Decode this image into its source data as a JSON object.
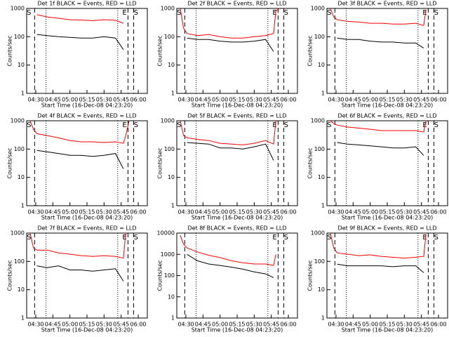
{
  "chart_data": [
    {
      "type": "line",
      "title": "Det 1f BLACK = Events, RED = LLD",
      "xlabel": "Start Time (16-Dec-08 04:23:20)",
      "ylabel": "Counts/sec",
      "log_y": true,
      "x": [
        "04:25",
        "04:28",
        "04:31",
        "04:40",
        "04:50",
        "05:00",
        "05:10",
        "05:20",
        "05:30",
        "05:40",
        "05:47",
        "05:49",
        "05:52",
        "05:55"
      ],
      "series": [
        {
          "color": "#ff0000",
          "values": [
            null,
            null,
            600,
            500,
            450,
            400,
            390,
            370,
            400,
            380,
            300,
            null,
            null,
            null
          ]
        },
        {
          "color": "#000000",
          "values": [
            null,
            null,
            120,
            110,
            100,
            95,
            90,
            90,
            100,
            90,
            35,
            null,
            null,
            null
          ]
        }
      ],
      "xlim": [
        "04:22",
        "06:08"
      ],
      "xticks": [
        "04:30",
        "04:45",
        "05:00",
        "05:15",
        "05:30",
        "05:45",
        "06:00"
      ],
      "ylim": [
        1,
        1000
      ],
      "yticks": [
        1,
        10,
        100,
        1000
      ],
      "vlines": [
        {
          "x": "04:29",
          "style": "dashed"
        },
        {
          "x": "04:39",
          "style": "dotted"
        },
        {
          "x": "05:42",
          "style": "dotted"
        },
        {
          "x": "05:51",
          "style": "dashed"
        },
        {
          "x": "05:56",
          "style": "dashed"
        }
      ],
      "labels": [
        {
          "x": "04:24",
          "text": "S"
        },
        {
          "x": "05:48",
          "text": "E"
        },
        {
          "x": "05:58",
          "text": "S"
        }
      ]
    },
    {
      "type": "line",
      "title": "Det 2f BLACK = Events, RED = LLD",
      "xlabel": "Start Time (16-Dec-08 04:23:20)",
      "ylabel": "Counts/sec",
      "log_y": true,
      "x": [
        "04:25",
        "04:28",
        "04:31",
        "04:40",
        "04:50",
        "05:00",
        "05:10",
        "05:20",
        "05:30",
        "05:40",
        "05:47",
        "05:49",
        "05:52",
        "05:55"
      ],
      "series": [
        {
          "color": "#ff0000",
          "values": [
            1000,
            200,
            130,
            110,
            120,
            100,
            90,
            90,
            100,
            110,
            130,
            800,
            1000,
            null
          ]
        },
        {
          "color": "#000000",
          "values": [
            null,
            null,
            90,
            80,
            80,
            70,
            65,
            65,
            70,
            80,
            30,
            null,
            null,
            null
          ]
        }
      ],
      "xlim": [
        "04:22",
        "06:08"
      ],
      "xticks": [
        "04:30",
        "04:45",
        "05:00",
        "05:15",
        "05:30",
        "05:45",
        "06:00"
      ],
      "ylim": [
        1,
        1000
      ],
      "yticks": [
        1,
        10,
        100,
        1000
      ],
      "vlines": [
        {
          "x": "04:29",
          "style": "dashed"
        },
        {
          "x": "04:39",
          "style": "dotted"
        },
        {
          "x": "05:42",
          "style": "dotted"
        },
        {
          "x": "05:51",
          "style": "dashed"
        },
        {
          "x": "05:56",
          "style": "dashed"
        }
      ],
      "labels": [
        {
          "x": "04:24",
          "text": "S"
        },
        {
          "x": "05:48",
          "text": "E"
        },
        {
          "x": "05:58",
          "text": "S"
        }
      ]
    },
    {
      "type": "line",
      "title": "Det 3f BLACK = Events, RED = LLD",
      "xlabel": "Start Time (16-Dec-08 04:23:20)",
      "ylabel": "Counts/sec",
      "log_y": true,
      "x": [
        "04:25",
        "04:28",
        "04:31",
        "04:40",
        "04:50",
        "05:00",
        "05:10",
        "05:20",
        "05:30",
        "05:40",
        "05:47",
        "05:49",
        "05:52",
        "05:55"
      ],
      "series": [
        {
          "color": "#ff0000",
          "values": [
            1000,
            500,
            400,
            350,
            330,
            300,
            300,
            280,
            280,
            300,
            250,
            900,
            null,
            null
          ]
        },
        {
          "color": "#000000",
          "values": [
            null,
            null,
            90,
            80,
            80,
            70,
            65,
            65,
            60,
            60,
            40,
            null,
            null,
            null
          ]
        }
      ],
      "xlim": [
        "04:22",
        "06:08"
      ],
      "xticks": [
        "04:30",
        "04:45",
        "05:00",
        "05:15",
        "05:30",
        "05:45",
        "06:00"
      ],
      "ylim": [
        1,
        1000
      ],
      "yticks": [
        1,
        10,
        100,
        1000
      ],
      "vlines": [
        {
          "x": "04:29",
          "style": "dashed"
        },
        {
          "x": "04:39",
          "style": "dotted"
        },
        {
          "x": "05:42",
          "style": "dotted"
        },
        {
          "x": "05:51",
          "style": "dashed"
        },
        {
          "x": "05:56",
          "style": "dashed"
        }
      ],
      "labels": [
        {
          "x": "04:24",
          "text": "S"
        },
        {
          "x": "05:48",
          "text": "E"
        },
        {
          "x": "05:58",
          "text": "S"
        }
      ]
    },
    {
      "type": "line",
      "title": "Det 4f BLACK = Events, RED = LLD",
      "xlabel": "Start Time (16-Dec-08 04:23:20)",
      "ylabel": "Counts/sec",
      "log_y": true,
      "x": [
        "04:25",
        "04:28",
        "04:31",
        "04:40",
        "04:50",
        "05:00",
        "05:10",
        "05:20",
        "05:30",
        "05:40",
        "05:47",
        "05:49",
        "05:52",
        "05:55"
      ],
      "series": [
        {
          "color": "#ff0000",
          "values": [
            1000,
            500,
            350,
            300,
            250,
            200,
            180,
            180,
            170,
            180,
            160,
            300,
            1000,
            null
          ]
        },
        {
          "color": "#000000",
          "values": [
            null,
            null,
            90,
            80,
            70,
            60,
            60,
            55,
            60,
            70,
            20,
            null,
            null,
            null
          ]
        }
      ],
      "xlim": [
        "04:22",
        "06:08"
      ],
      "xticks": [
        "04:30",
        "04:45",
        "05:00",
        "05:15",
        "05:30",
        "05:45",
        "06:00"
      ],
      "ylim": [
        1,
        1000
      ],
      "yticks": [
        1,
        10,
        100,
        1000
      ],
      "vlines": [
        {
          "x": "04:29",
          "style": "dashed"
        },
        {
          "x": "04:39",
          "style": "dotted"
        },
        {
          "x": "05:42",
          "style": "dotted"
        },
        {
          "x": "05:51",
          "style": "dashed"
        },
        {
          "x": "05:56",
          "style": "dashed"
        }
      ],
      "labels": [
        {
          "x": "04:24",
          "text": "S"
        },
        {
          "x": "05:48",
          "text": "E"
        },
        {
          "x": "05:58",
          "text": "S"
        }
      ]
    },
    {
      "type": "line",
      "title": "Det 5f BLACK = Events, RED = LLD",
      "xlabel": "Start Time (16-Dec-08 04:23:20)",
      "ylabel": "Counts/sec",
      "log_y": true,
      "x": [
        "04:25",
        "04:28",
        "04:31",
        "04:40",
        "04:50",
        "05:00",
        "05:10",
        "05:20",
        "05:30",
        "05:40",
        "05:47",
        "05:49",
        "05:52",
        "05:55"
      ],
      "series": [
        {
          "color": "#ff0000",
          "values": [
            1000,
            300,
            250,
            220,
            200,
            160,
            150,
            140,
            160,
            200,
            150,
            1000,
            null,
            null
          ]
        },
        {
          "color": "#000000",
          "values": [
            null,
            null,
            170,
            160,
            150,
            110,
            110,
            100,
            120,
            150,
            40,
            null,
            null,
            null
          ]
        }
      ],
      "xlim": [
        "04:22",
        "06:08"
      ],
      "xticks": [
        "04:30",
        "04:45",
        "05:00",
        "05:15",
        "05:30",
        "05:45",
        "06:00"
      ],
      "ylim": [
        1,
        1000
      ],
      "yticks": [
        1,
        10,
        100,
        1000
      ],
      "vlines": [
        {
          "x": "04:29",
          "style": "dashed"
        },
        {
          "x": "04:39",
          "style": "dotted"
        },
        {
          "x": "05:42",
          "style": "dotted"
        },
        {
          "x": "05:51",
          "style": "dashed"
        },
        {
          "x": "05:56",
          "style": "dashed"
        }
      ],
      "labels": [
        {
          "x": "04:24",
          "text": "S"
        },
        {
          "x": "05:48",
          "text": "E"
        },
        {
          "x": "05:58",
          "text": "S"
        }
      ]
    },
    {
      "type": "line",
      "title": "Det 6f BLACK = Events, RED = LLD",
      "xlabel": "Start Time (16-Dec-08 04:23:20)",
      "ylabel": "Counts/sec",
      "log_y": true,
      "x": [
        "04:25",
        "04:28",
        "04:31",
        "04:40",
        "04:50",
        "05:00",
        "05:10",
        "05:20",
        "05:30",
        "05:40",
        "05:47",
        "05:49",
        "05:52",
        "05:55"
      ],
      "series": [
        {
          "color": "#ff0000",
          "values": [
            1000,
            800,
            700,
            600,
            550,
            500,
            450,
            450,
            450,
            450,
            400,
            1000,
            null,
            null
          ]
        },
        {
          "color": "#000000",
          "values": [
            null,
            null,
            170,
            150,
            140,
            130,
            120,
            110,
            110,
            120,
            60,
            null,
            null,
            null
          ]
        }
      ],
      "xlim": [
        "04:22",
        "06:08"
      ],
      "xticks": [
        "04:30",
        "04:45",
        "05:00",
        "05:15",
        "05:30",
        "05:45",
        "06:00"
      ],
      "ylim": [
        1,
        1000
      ],
      "yticks": [
        1,
        10,
        100,
        1000
      ],
      "vlines": [
        {
          "x": "04:29",
          "style": "dashed"
        },
        {
          "x": "04:39",
          "style": "dotted"
        },
        {
          "x": "05:42",
          "style": "dotted"
        },
        {
          "x": "05:51",
          "style": "dashed"
        },
        {
          "x": "05:56",
          "style": "dashed"
        }
      ],
      "labels": [
        {
          "x": "04:24",
          "text": "S"
        },
        {
          "x": "05:48",
          "text": "E"
        },
        {
          "x": "05:58",
          "text": "S"
        }
      ]
    },
    {
      "type": "line",
      "title": "Det 7f BLACK = Events, RED = LLD",
      "xlabel": "Start Time (16-Dec-08 04:23:20)",
      "ylabel": "Counts/sec",
      "log_y": true,
      "x": [
        "04:25",
        "04:28",
        "04:31",
        "04:40",
        "04:50",
        "05:00",
        "05:10",
        "05:20",
        "05:30",
        "05:40",
        "05:47",
        "05:49",
        "05:52",
        "05:55"
      ],
      "series": [
        {
          "color": "#ff0000",
          "values": [
            1000,
            300,
            250,
            250,
            200,
            180,
            160,
            150,
            160,
            150,
            130,
            1000,
            null,
            null
          ]
        },
        {
          "color": "#000000",
          "values": [
            null,
            null,
            70,
            60,
            70,
            50,
            50,
            45,
            50,
            55,
            20,
            null,
            null,
            null
          ]
        }
      ],
      "xlim": [
        "04:22",
        "06:08"
      ],
      "xticks": [
        "04:30",
        "04:45",
        "05:00",
        "05:15",
        "05:30",
        "05:45",
        "06:00"
      ],
      "ylim": [
        1,
        1000
      ],
      "yticks": [
        1,
        10,
        100,
        1000
      ],
      "vlines": [
        {
          "x": "04:29",
          "style": "dashed"
        },
        {
          "x": "04:39",
          "style": "dotted"
        },
        {
          "x": "05:42",
          "style": "dotted"
        },
        {
          "x": "05:51",
          "style": "dashed"
        },
        {
          "x": "05:56",
          "style": "dashed"
        }
      ],
      "labels": [
        {
          "x": "04:24",
          "text": "S"
        },
        {
          "x": "05:48",
          "text": "E"
        },
        {
          "x": "05:58",
          "text": "S"
        }
      ]
    },
    {
      "type": "line",
      "title": "Det 8f BLACK = Events, RED = LLD",
      "xlabel": "Start Time (16-Dec-08 04:23:20)",
      "ylabel": "Counts/sec",
      "log_y": true,
      "x": [
        "04:25",
        "04:28",
        "04:31",
        "04:40",
        "04:50",
        "05:00",
        "05:10",
        "05:20",
        "05:30",
        "05:40",
        "05:47",
        "05:49",
        "05:52",
        "05:55"
      ],
      "series": [
        {
          "color": "#ff0000",
          "values": [
            8000,
            3000,
            2000,
            1300,
            900,
            700,
            500,
            400,
            350,
            350,
            300,
            1000,
            null,
            null
          ]
        },
        {
          "color": "#000000",
          "values": [
            null,
            null,
            1000,
            500,
            350,
            300,
            250,
            200,
            150,
            120,
            80,
            null,
            null,
            null
          ]
        }
      ],
      "xlim": [
        "04:22",
        "06:08"
      ],
      "xticks": [
        "04:30",
        "04:45",
        "05:00",
        "05:15",
        "05:30",
        "05:45",
        "06:00"
      ],
      "ylim": [
        1,
        10000
      ],
      "yticks": [
        1,
        10,
        100,
        1000,
        10000
      ],
      "vlines": [
        {
          "x": "04:29",
          "style": "dashed"
        },
        {
          "x": "04:39",
          "style": "dotted"
        },
        {
          "x": "05:42",
          "style": "dotted"
        },
        {
          "x": "05:51",
          "style": "dashed"
        },
        {
          "x": "05:56",
          "style": "dashed"
        }
      ],
      "labels": [
        {
          "x": "05:48",
          "text": "E"
        },
        {
          "x": "05:58",
          "text": "S"
        }
      ]
    },
    {
      "type": "line",
      "title": "Det 9f BLACK = Events, RED = LLD",
      "xlabel": "Start Time (16-Dec-08 04:23:20)",
      "ylabel": "Counts/sec",
      "log_y": true,
      "x": [
        "04:25",
        "04:28",
        "04:31",
        "04:40",
        "04:50",
        "05:00",
        "05:10",
        "05:20",
        "05:30",
        "05:40",
        "05:47",
        "05:49",
        "05:52",
        "05:55"
      ],
      "series": [
        {
          "color": "#ff0000",
          "values": [
            1000,
            300,
            200,
            180,
            160,
            170,
            150,
            140,
            130,
            140,
            150,
            900,
            null,
            null
          ]
        },
        {
          "color": "#000000",
          "values": [
            null,
            null,
            80,
            70,
            70,
            70,
            70,
            65,
            70,
            70,
            40,
            null,
            null,
            null
          ]
        }
      ],
      "xlim": [
        "04:22",
        "06:08"
      ],
      "xticks": [
        "04:30",
        "04:45",
        "05:00",
        "05:15",
        "05:30",
        "05:45",
        "06:00"
      ],
      "ylim": [
        1,
        1000
      ],
      "yticks": [
        1,
        10,
        100,
        1000
      ],
      "vlines": [
        {
          "x": "04:29",
          "style": "dashed"
        },
        {
          "x": "04:39",
          "style": "dotted"
        },
        {
          "x": "05:42",
          "style": "dotted"
        },
        {
          "x": "05:51",
          "style": "dashed"
        },
        {
          "x": "05:56",
          "style": "dashed"
        }
      ],
      "labels": [
        {
          "x": "04:24",
          "text": "S"
        },
        {
          "x": "05:48",
          "text": "E"
        },
        {
          "x": "05:58",
          "text": "S"
        }
      ]
    }
  ]
}
